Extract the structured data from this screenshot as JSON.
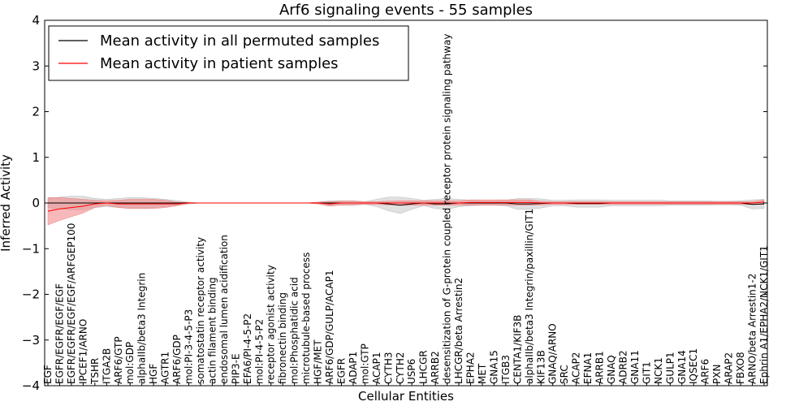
{
  "chart_data": {
    "type": "line",
    "title": "Arf6 signaling events - 55 samples",
    "xlabel": "Cellular Entities",
    "ylabel": "Inferred Activity",
    "ylim": [
      -4,
      4
    ],
    "yticks": [
      "4",
      "3",
      "2",
      "1",
      "0",
      "−1",
      "−2",
      "−3",
      "−4"
    ],
    "ytick_values": [
      4,
      3,
      2,
      1,
      0,
      -1,
      -2,
      -3,
      -4
    ],
    "grid": false,
    "legend_position": "top-left",
    "categories": [
      "EGF",
      "EGFR/EGFR/EGF/EGF",
      "EGFR/EGFR/EGF/EGF/ARFGEP100",
      "IPCEF1/ARNO",
      "TSHR",
      "ITGA2B",
      "ARF6/GTP",
      "mol:GDP",
      "alphaIIb/beta3 Integrin",
      "HGF",
      "AGTR1",
      "ARF6/GDP",
      "mol:PI-3-4-5-P3",
      "somatostatin receptor activity",
      "actin filament binding",
      "endosomal lumen acidification",
      "PIP3-E",
      "EFA6/PI-4-5-P2",
      "mol:PI-4-5-P2",
      "receptor agonist activity",
      "fibronectin binding",
      "mol:Phosphatidic acid",
      "microtubule-based process",
      "HGF/MET",
      "ARF6/GDP/GULP/ACAP1",
      "EGFR",
      "ADAP1",
      "mol:GTP",
      "ACAP1",
      "CYTH3",
      "CYTH2",
      "USP6",
      "LHCGR",
      "ARRB2",
      "desensitization of G-protein coupled receptor protein signaling pathway",
      "LHCGR/beta Arrestin2",
      "EPHA2",
      "MET",
      "GNA15",
      "ITGB3",
      "CENTA1/KIF3B",
      "alphaIIb/beta3 Integrin/paxillin/GIT1",
      "KIF13B",
      "GNAQ/ARNO",
      "SRC",
      "ACAP2",
      "EFNA1",
      "ARRB1",
      "GNAQ",
      "ADRB2",
      "GNA11",
      "GIT1",
      "NCK1",
      "GULP1",
      "GNA14",
      "IQSEC1",
      "ARF6",
      "PXN",
      "ARAP2",
      "FBXO8",
      "ARNO/beta Arrestin1-2",
      "Ephrin A1/EPHA2/NCK1/GIT1"
    ],
    "series": [
      {
        "name": "Mean activity in all permuted samples",
        "color": "#000000",
        "band_color": "#bbbbbb",
        "values": [
          0.0,
          0.0,
          0.0,
          0.0,
          0.0,
          0.0,
          0.0,
          0.0,
          0.0,
          0.0,
          0.0,
          0.0,
          0.0,
          0.0,
          0.0,
          0.0,
          0.0,
          0.0,
          0.0,
          0.0,
          0.0,
          0.0,
          0.0,
          0.0,
          0.0,
          0.0,
          0.0,
          0.0,
          0.0,
          -0.02,
          -0.05,
          -0.02,
          0.0,
          -0.02,
          -0.02,
          0.0,
          0.0,
          0.0,
          0.0,
          0.0,
          -0.02,
          -0.02,
          -0.01,
          0.0,
          0.0,
          -0.01,
          -0.01,
          -0.01,
          0.0,
          0.0,
          0.0,
          0.0,
          0.0,
          0.0,
          0.0,
          0.0,
          0.0,
          0.0,
          0.0,
          0.0,
          -0.03,
          -0.02
        ],
        "std": [
          0.1,
          0.13,
          0.15,
          0.15,
          0.1,
          0.08,
          0.1,
          0.12,
          0.12,
          0.1,
          0.08,
          0.05,
          0.02,
          0.0,
          0.0,
          0.0,
          0.0,
          0.0,
          0.0,
          0.0,
          0.0,
          0.0,
          0.0,
          0.02,
          0.05,
          0.05,
          0.05,
          0.03,
          0.08,
          0.15,
          0.18,
          0.12,
          0.06,
          0.1,
          0.12,
          0.08,
          0.06,
          0.05,
          0.05,
          0.06,
          0.12,
          0.12,
          0.1,
          0.06,
          0.06,
          0.08,
          0.08,
          0.08,
          0.06,
          0.06,
          0.06,
          0.06,
          0.06,
          0.05,
          0.05,
          0.05,
          0.05,
          0.04,
          0.04,
          0.05,
          0.1,
          0.1
        ]
      },
      {
        "name": "Mean activity in patient samples",
        "color": "#ff0000",
        "band_color": "#f08080",
        "values": [
          -0.18,
          -0.13,
          -0.1,
          -0.07,
          -0.02,
          0.0,
          -0.02,
          -0.02,
          -0.02,
          -0.02,
          -0.02,
          -0.02,
          0.0,
          0.0,
          0.0,
          0.0,
          0.0,
          0.0,
          0.0,
          0.0,
          0.0,
          0.0,
          0.0,
          0.0,
          -0.02,
          0.0,
          0.0,
          0.0,
          0.0,
          0.0,
          0.0,
          0.0,
          0.0,
          0.0,
          0.0,
          0.0,
          0.01,
          0.01,
          0.01,
          0.01,
          0.01,
          0.01,
          0.0,
          0.0,
          0.0,
          0.0,
          0.0,
          0.0,
          0.0,
          0.0,
          0.0,
          0.0,
          0.0,
          0.0,
          0.0,
          0.0,
          0.0,
          0.0,
          0.0,
          0.0,
          0.0,
          0.02
        ],
        "std": [
          0.3,
          0.25,
          0.2,
          0.15,
          0.08,
          0.05,
          0.08,
          0.1,
          0.1,
          0.1,
          0.08,
          0.04,
          0.01,
          0.0,
          0.0,
          0.0,
          0.0,
          0.0,
          0.0,
          0.0,
          0.0,
          0.0,
          0.0,
          0.02,
          0.05,
          0.04,
          0.04,
          0.03,
          0.03,
          0.04,
          0.05,
          0.05,
          0.05,
          0.05,
          0.05,
          0.05,
          0.06,
          0.06,
          0.06,
          0.06,
          0.06,
          0.06,
          0.04,
          0.03,
          0.03,
          0.03,
          0.03,
          0.03,
          0.03,
          0.03,
          0.03,
          0.03,
          0.03,
          0.03,
          0.03,
          0.03,
          0.03,
          0.03,
          0.03,
          0.03,
          0.03,
          0.05
        ]
      }
    ]
  }
}
